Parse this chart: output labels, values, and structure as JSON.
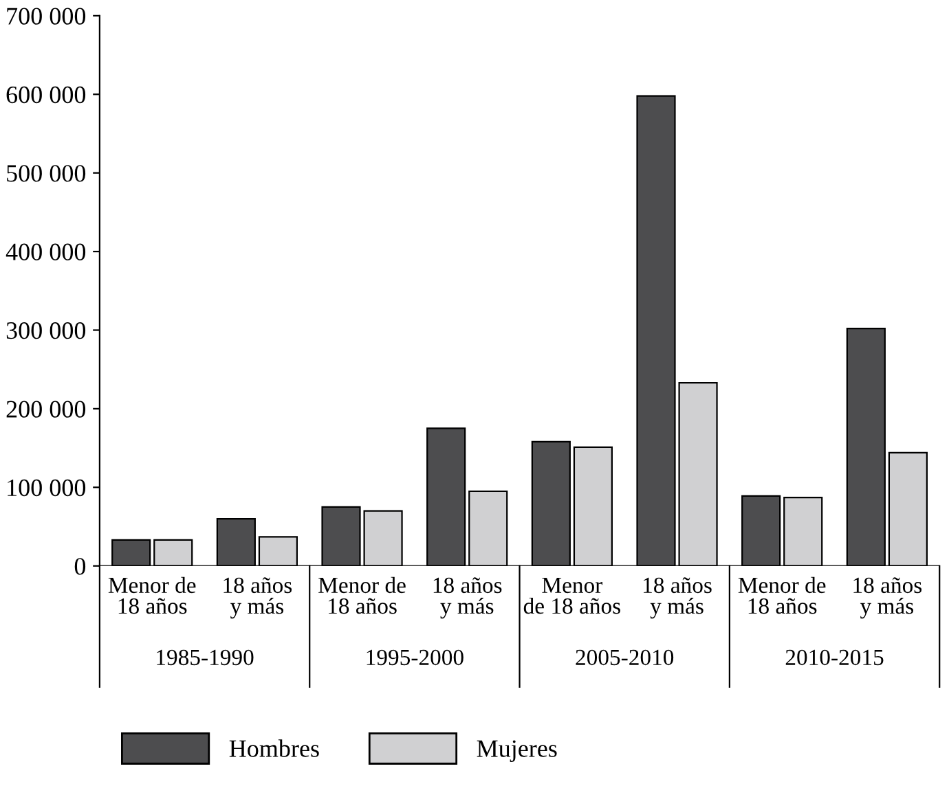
{
  "chart_data": {
    "type": "bar",
    "categories": [
      "Menor de\n18 años",
      "18 años\ny más",
      "Menor de\n18 años",
      "18 años\ny más",
      "Menor\nde 18 años",
      "18 años\ny más",
      "Menor de\n18 años",
      "18 años\ny más"
    ],
    "series": [
      {
        "name": "Hombres",
        "color": "#4d4d4f",
        "values": [
          33000,
          60000,
          75000,
          175000,
          158000,
          598000,
          89000,
          302000
        ]
      },
      {
        "name": "Mujeres",
        "color": "#d0d0d2",
        "values": [
          33000,
          37000,
          70000,
          95000,
          151000,
          233000,
          87000,
          144000
        ]
      }
    ],
    "annotations": [
      "1985-1990",
      "1995-2000",
      "2005-2010",
      "2010-2015"
    ],
    "ylim": [
      0,
      700000
    ],
    "yticks": [
      {
        "value": 0,
        "label": "0"
      },
      {
        "value": 100000,
        "label": "100 000"
      },
      {
        "value": 200000,
        "label": "200 000"
      },
      {
        "value": 300000,
        "label": "300 000"
      },
      {
        "value": 400000,
        "label": "400 000"
      },
      {
        "value": 500000,
        "label": "500 000"
      },
      {
        "value": 600000,
        "label": "600 000"
      },
      {
        "value": 700000,
        "label": "700 000"
      }
    ],
    "grid": false,
    "legend": "bottom left"
  }
}
